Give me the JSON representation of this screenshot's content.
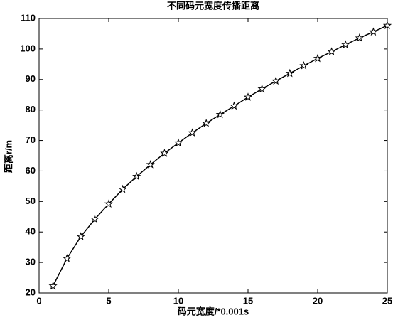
{
  "chart_data": {
    "type": "line",
    "title": "不同码元宽度传播距离",
    "x_label": "码元宽度/*0.001s",
    "y_label": "距离r/m",
    "x": [
      1,
      2,
      3,
      4,
      5,
      6,
      7,
      8,
      9,
      10,
      11,
      12,
      13,
      14,
      15,
      16,
      17,
      18,
      19,
      20,
      21,
      22,
      23,
      24,
      25
    ],
    "series": [
      {
        "color": "#000000",
        "marker": "star",
        "values": [
          22.3,
          31.3,
          38.5,
          44.2,
          49.2,
          54,
          58.2,
          62.1,
          65.8,
          69.2,
          72.5,
          75.6,
          78.5,
          81.3,
          84.2,
          86.9,
          89.5,
          92,
          94.5,
          96.9,
          99.1,
          101.4,
          103.6,
          105.6,
          107.7
        ]
      }
    ],
    "xlim": [
      0,
      25
    ],
    "xticks": [
      0,
      5,
      10,
      15,
      20,
      25
    ],
    "ylim": [
      20,
      110
    ],
    "yticks": [
      20,
      30,
      40,
      50,
      60,
      70,
      80,
      90,
      100,
      110
    ],
    "grid": false
  }
}
